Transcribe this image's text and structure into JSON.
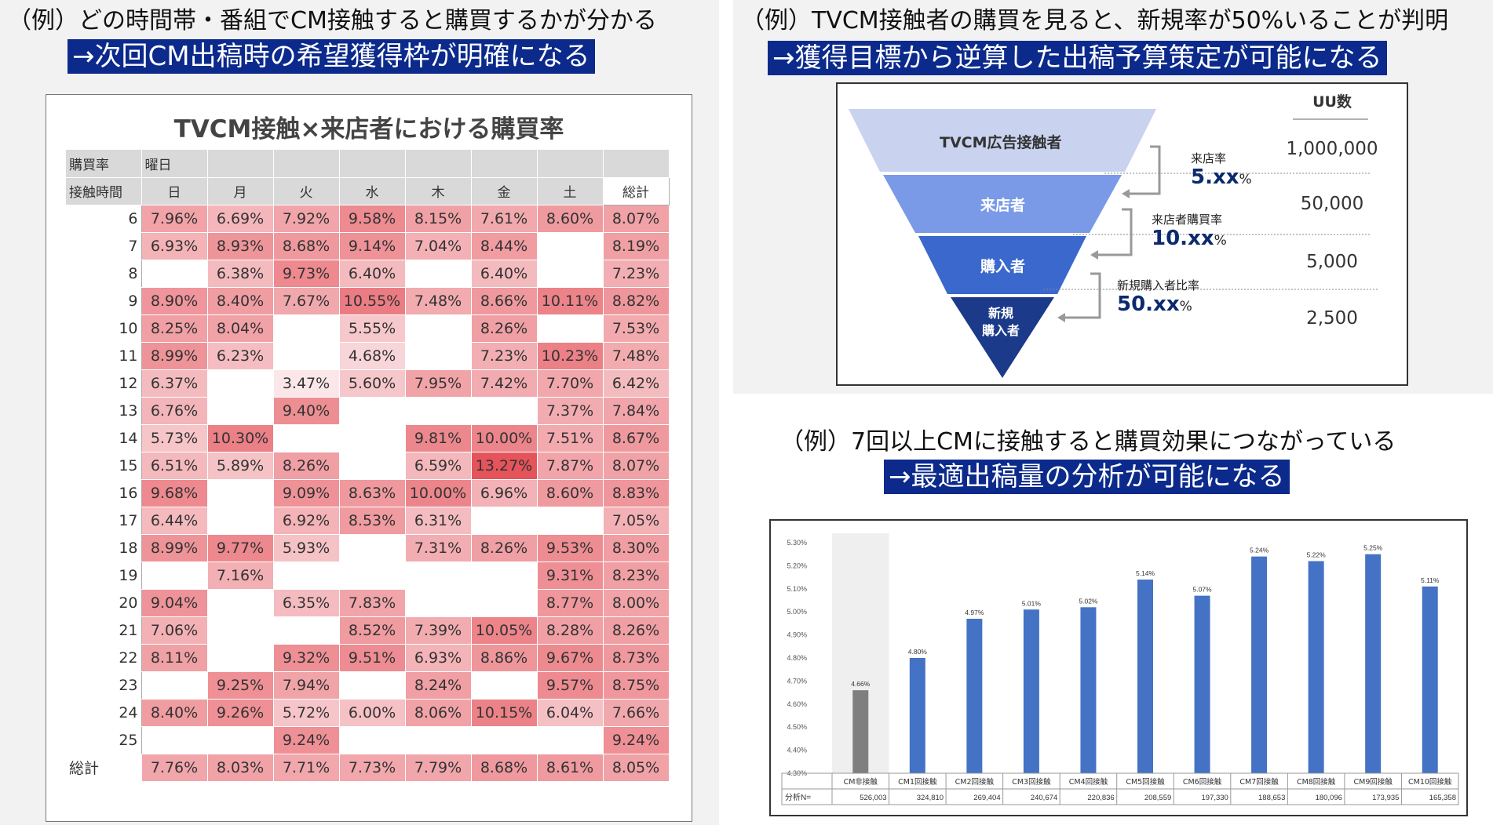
{
  "panel1": {
    "heading": "（例）どの時間帯・番組でCM接触すると購買するかが分かる",
    "sub": "→次回CM出稿時の希望獲得枠が明確になる"
  },
  "panel2": {
    "heading": "（例）TVCM接触者の購買を見ると、新規率が50%いることが判明",
    "sub": "→獲得目標から逆算した出稿予算策定が可能になる"
  },
  "panel3": {
    "heading": "（例）7回以上CMに接触すると購買効果につながっている",
    "sub": "→最適出稿量の分析が可能になる"
  },
  "funnel": {
    "uu_header": "UU数",
    "stages": [
      {
        "label": "TVCM広告接触者",
        "uu": "1,000,000",
        "color": "#c9d3ef"
      },
      {
        "label": "来店者",
        "uu": "50,000",
        "color": "#7a9ae8"
      },
      {
        "label": "購入者",
        "uu": "5,000",
        "color": "#3a68cc"
      },
      {
        "label": "新規\n購入者",
        "uu": "2,500",
        "color": "#1c3a8a"
      }
    ],
    "rates": [
      {
        "label": "来店率",
        "value": "5.xx",
        "unit": "%"
      },
      {
        "label": "来店者購買率",
        "value": "10.xx",
        "unit": "%"
      },
      {
        "label": "新規購入者比率",
        "value": "50.xx",
        "unit": "%"
      }
    ]
  },
  "chart_data": [
    {
      "type": "heatmap",
      "title": "TVCM接触×来店者における購買率",
      "header_row1": [
        "購買率",
        "曜日"
      ],
      "corner_label": "接触時間",
      "columns": [
        "日",
        "月",
        "火",
        "水",
        "木",
        "金",
        "土",
        "総計"
      ],
      "rows": [
        "6",
        "7",
        "8",
        "9",
        "10",
        "11",
        "12",
        "13",
        "14",
        "15",
        "16",
        "17",
        "18",
        "19",
        "20",
        "21",
        "22",
        "23",
        "24",
        "25"
      ],
      "values": [
        [
          7.96,
          6.69,
          7.92,
          9.58,
          8.15,
          7.61,
          8.6,
          8.07
        ],
        [
          6.93,
          8.93,
          8.68,
          9.14,
          7.04,
          8.44,
          null,
          8.19
        ],
        [
          null,
          6.38,
          9.73,
          6.4,
          null,
          6.4,
          null,
          7.23
        ],
        [
          8.9,
          8.4,
          7.67,
          10.55,
          7.48,
          8.66,
          10.11,
          8.82
        ],
        [
          8.25,
          8.04,
          null,
          5.55,
          null,
          8.26,
          null,
          7.53
        ],
        [
          8.99,
          6.23,
          null,
          4.68,
          null,
          7.23,
          10.23,
          7.48
        ],
        [
          6.37,
          null,
          3.47,
          5.6,
          7.95,
          7.42,
          7.7,
          6.42
        ],
        [
          6.76,
          null,
          9.4,
          null,
          null,
          null,
          7.37,
          7.84
        ],
        [
          5.73,
          10.3,
          null,
          null,
          9.81,
          10.0,
          7.51,
          8.67
        ],
        [
          6.51,
          5.89,
          8.26,
          null,
          6.59,
          13.27,
          7.87,
          8.07
        ],
        [
          9.68,
          null,
          9.09,
          8.63,
          10.0,
          6.96,
          8.6,
          8.83
        ],
        [
          6.44,
          null,
          6.92,
          8.53,
          6.31,
          null,
          null,
          7.05
        ],
        [
          8.99,
          9.77,
          5.93,
          null,
          7.31,
          8.26,
          9.53,
          8.3
        ],
        [
          null,
          7.16,
          null,
          null,
          null,
          null,
          9.31,
          8.23
        ],
        [
          9.04,
          null,
          6.35,
          7.83,
          null,
          null,
          8.77,
          8.0
        ],
        [
          7.06,
          null,
          null,
          8.52,
          7.39,
          10.05,
          8.28,
          8.26
        ],
        [
          8.11,
          null,
          9.32,
          9.51,
          6.93,
          8.86,
          9.67,
          8.73
        ],
        [
          null,
          9.25,
          7.94,
          null,
          8.24,
          null,
          9.57,
          8.75
        ],
        [
          8.4,
          9.26,
          5.72,
          6.0,
          8.06,
          10.15,
          6.04,
          7.66
        ],
        [
          null,
          null,
          9.24,
          null,
          null,
          null,
          null,
          9.24
        ]
      ],
      "total_label": "総計",
      "totals": [
        7.76,
        8.03,
        7.71,
        7.73,
        7.79,
        8.68,
        8.61,
        8.05
      ],
      "unit": "%"
    },
    {
      "type": "bar",
      "categories": [
        "CM非接触",
        "CM1回接触",
        "CM2回接触",
        "CM3回接触",
        "CM4回接触",
        "CM5回接触",
        "CM6回接触",
        "CM7回接触",
        "CM8回接触",
        "CM9回接触",
        "CM10回接触"
      ],
      "values": [
        4.66,
        4.8,
        4.97,
        5.01,
        5.02,
        5.14,
        5.07,
        5.24,
        5.22,
        5.25,
        5.11
      ],
      "ylim": [
        4.3,
        5.3
      ],
      "yticks": [
        "5.30%",
        "5.20%",
        "5.10%",
        "5.00%",
        "4.90%",
        "4.80%",
        "4.70%",
        "4.60%",
        "4.50%",
        "4.40%",
        "4.30%"
      ],
      "colors": {
        "baseline": "#7f7f7f",
        "bars": "#4472c4",
        "baseline_bg": "#efefef"
      },
      "n_label": "分析N=",
      "n_values": [
        "526,003",
        "324,810",
        "269,404",
        "240,674",
        "220,836",
        "208,559",
        "197,330",
        "188,653",
        "180,096",
        "173,935",
        "165,358"
      ]
    }
  ]
}
